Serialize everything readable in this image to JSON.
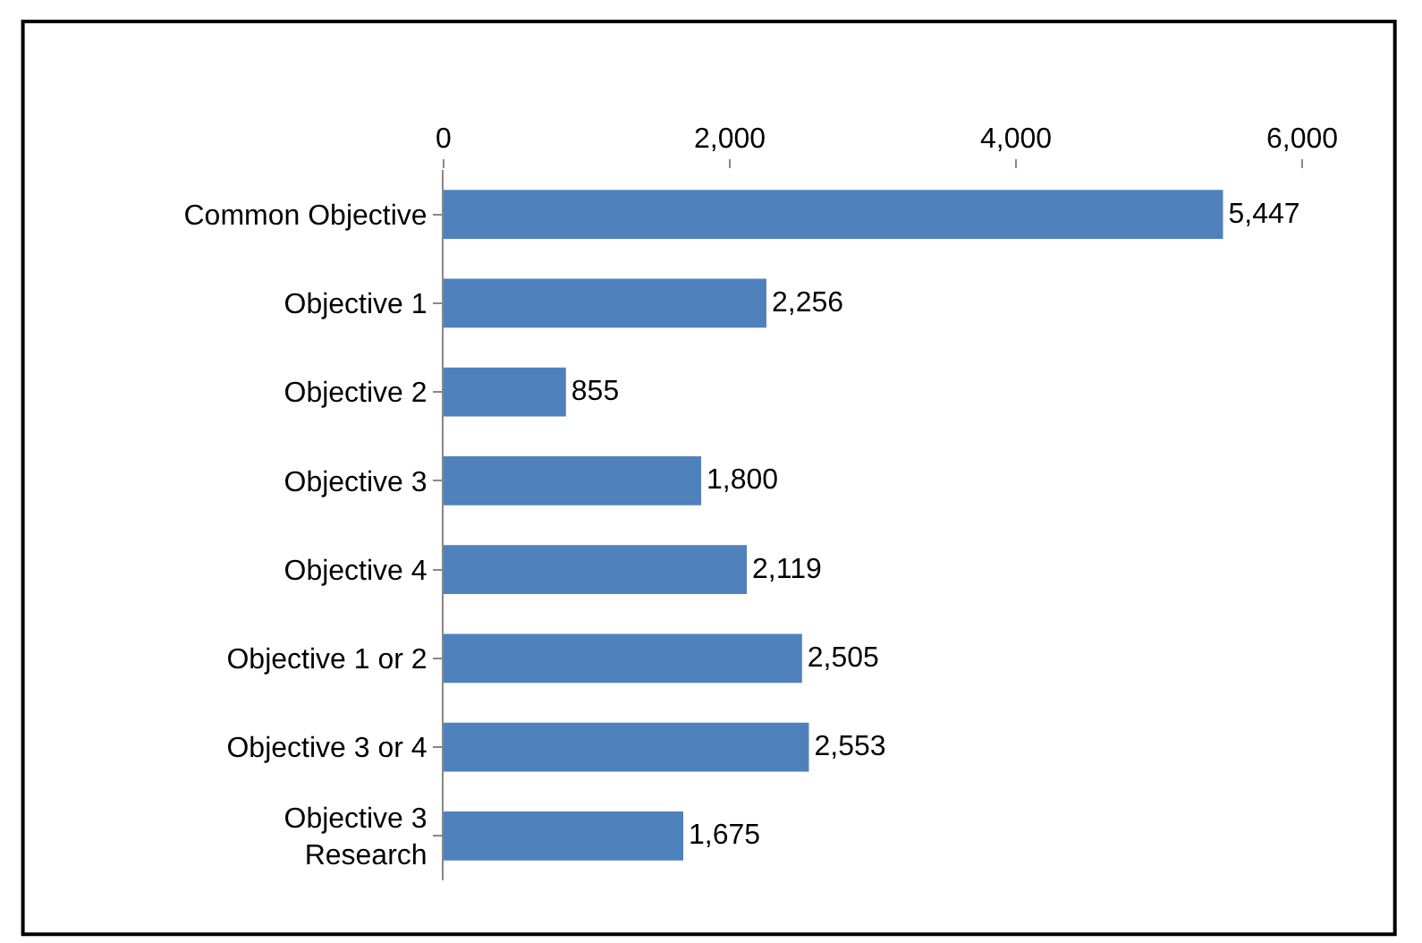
{
  "chart_data": {
    "type": "bar",
    "orientation": "horizontal",
    "categories": [
      "Common Objective",
      "Objective 1",
      "Objective 2",
      "Objective 3",
      "Objective 4",
      "Objective 1 or 2",
      "Objective 3 or 4",
      "Objective 3\nResearch"
    ],
    "values": [
      5447,
      2256,
      855,
      1800,
      2119,
      2505,
      2553,
      1675
    ],
    "value_labels": [
      "5,447",
      "2,256",
      "855",
      "1,800",
      "2,119",
      "2,505",
      "2,553",
      "1,675"
    ],
    "color": "#4f81bd",
    "xlim": [
      0,
      6000
    ],
    "xticks": [
      0,
      {
        "value": 2000,
        "label": "2,000"
      },
      {
        "value": 4000,
        "label": "4,000"
      },
      {
        "value": 6000,
        "label": "6,000"
      }
    ],
    "legend": false
  }
}
